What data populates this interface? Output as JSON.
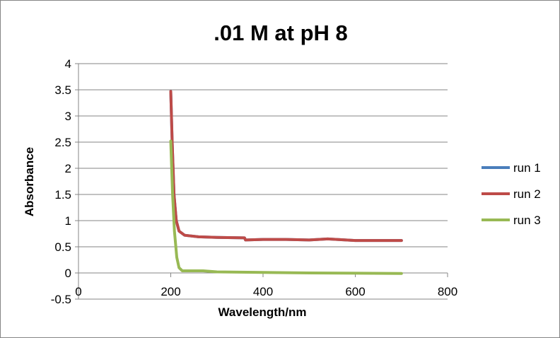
{
  "chart_data": {
    "type": "line",
    "title": ".01 M at pH 8",
    "xlabel": "Wavelength/nm",
    "ylabel": "Absorbance",
    "xlim": [
      0,
      800
    ],
    "ylim": [
      -0.5,
      4
    ],
    "x_ticks": [
      "0",
      "200",
      "400",
      "600",
      "800"
    ],
    "y_ticks": [
      "-0.5",
      "0",
      "0.5",
      "1",
      "1.5",
      "2",
      "2.5",
      "3",
      "3.5",
      "4"
    ],
    "grid": true,
    "legend": "right",
    "series": [
      {
        "name": "run 1",
        "color": "#4a7ebb",
        "x": [
          200,
          203,
          207,
          212,
          218,
          230,
          260,
          300,
          360,
          362,
          400,
          450,
          500,
          540,
          600,
          700
        ],
        "y": [
          3.47,
          2.5,
          1.5,
          1.0,
          0.8,
          0.72,
          0.69,
          0.68,
          0.67,
          0.63,
          0.64,
          0.64,
          0.63,
          0.65,
          0.62,
          0.62
        ]
      },
      {
        "name": "run 2",
        "color": "#be4b48",
        "x": [
          200,
          203,
          207,
          212,
          218,
          230,
          260,
          300,
          360,
          362,
          400,
          450,
          500,
          540,
          600,
          700
        ],
        "y": [
          3.47,
          2.5,
          1.5,
          1.0,
          0.8,
          0.72,
          0.69,
          0.68,
          0.67,
          0.63,
          0.64,
          0.64,
          0.63,
          0.65,
          0.62,
          0.62
        ]
      },
      {
        "name": "run 3",
        "color": "#98b954",
        "x": [
          200,
          204,
          208,
          213,
          218,
          225,
          270,
          300,
          400,
          500,
          700
        ],
        "y": [
          2.52,
          1.5,
          0.8,
          0.3,
          0.1,
          0.04,
          0.04,
          0.02,
          0.01,
          0.0,
          -0.01
        ]
      }
    ]
  }
}
